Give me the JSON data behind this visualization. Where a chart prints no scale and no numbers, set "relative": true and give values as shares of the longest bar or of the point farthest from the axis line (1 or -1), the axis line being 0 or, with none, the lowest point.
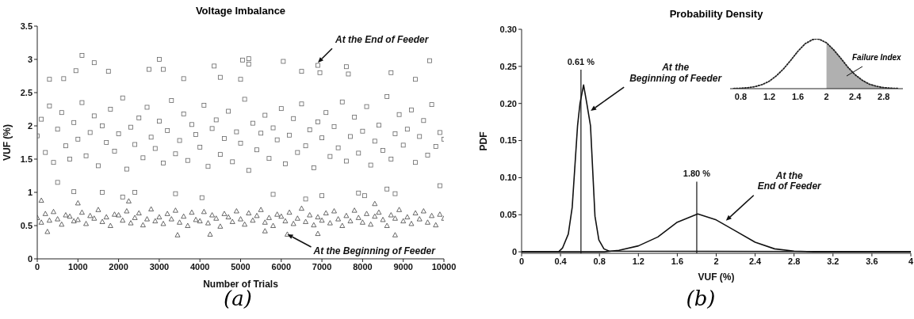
{
  "chart_data": [
    {
      "type": "scatter",
      "title": "Voltage Imbalance",
      "xlabel": "Number of Trials",
      "ylabel": "VUF (%)",
      "xlim": [
        0,
        10000
      ],
      "xticks": [
        0,
        1000,
        2000,
        3000,
        4000,
        5000,
        6000,
        7000,
        8000,
        9000,
        10000
      ],
      "ylim": [
        0,
        3.5
      ],
      "yticks": [
        0,
        0.5,
        1,
        1.5,
        2,
        2.5,
        3,
        3.5
      ],
      "series": [
        {
          "color": "#666666",
          "marker": "square",
          "x": [
            0,
            100,
            200,
            300,
            400,
            500,
            600,
            700,
            800,
            900,
            1000,
            1100,
            1200,
            1300,
            1400,
            1500,
            1600,
            1700,
            1800,
            1900,
            2000,
            2100,
            2200,
            2300,
            2400,
            2500,
            2600,
            2700,
            2800,
            2900,
            3000,
            3100,
            3200,
            3300,
            3400,
            3500,
            3600,
            3700,
            3800,
            3900,
            4000,
            4100,
            4200,
            4300,
            4400,
            4500,
            4600,
            4700,
            4800,
            4900,
            5000,
            5100,
            5200,
            5300,
            5400,
            5500,
            5600,
            5700,
            5800,
            5900,
            6000,
            6100,
            6200,
            6300,
            6400,
            6500,
            6600,
            6700,
            6800,
            6900,
            7000,
            7100,
            7200,
            7300,
            7400,
            7500,
            7600,
            7700,
            7800,
            7900,
            8000,
            8100,
            8200,
            8300,
            8400,
            8500,
            8600,
            8700,
            8800,
            8900,
            9000,
            9100,
            9200,
            9300,
            9400,
            9500,
            9600,
            9700,
            9800,
            9900,
            10000,
            1100,
            1400,
            3000,
            5050,
            5200,
            5200,
            6050,
            6900,
            7600,
            9650,
            950,
            3100,
            4350,
            6500,
            8700,
            1750,
            2750,
            300,
            650,
            3600,
            4500,
            5000,
            9300,
            6950,
            7650,
            900,
            1600,
            2400,
            3400,
            4050,
            5800,
            7000,
            8050,
            8800,
            2100,
            6600,
            7900,
            500,
            8600,
            9900
          ],
          "values": [
            1.85,
            2.1,
            1.6,
            2.3,
            1.45,
            1.95,
            2.2,
            1.7,
            1.5,
            2.05,
            1.8,
            2.35,
            1.55,
            1.9,
            2.15,
            1.4,
            2.0,
            1.75,
            2.25,
            1.62,
            1.88,
            2.42,
            1.35,
            1.98,
            1.72,
            2.12,
            1.52,
            2.28,
            1.83,
            1.66,
            2.07,
            1.44,
            1.93,
            2.38,
            1.58,
            1.78,
            2.18,
            1.48,
            2.02,
            1.87,
            1.68,
            2.31,
            1.39,
            1.96,
            2.09,
            1.57,
            1.81,
            2.22,
            1.46,
            1.91,
            1.74,
            2.4,
            1.33,
            2.04,
            1.64,
            1.89,
            2.16,
            1.51,
            1.97,
            1.79,
            2.26,
            1.43,
            1.86,
            2.11,
            1.6,
            2.33,
            1.7,
            1.94,
            1.37,
            2.06,
            1.82,
            2.2,
            1.54,
            1.99,
            1.67,
            2.36,
            1.47,
            1.84,
            2.13,
            1.59,
            1.92,
            2.29,
            1.41,
            1.77,
            2.01,
            1.63,
            2.44,
            1.5,
            1.88,
            2.17,
            1.71,
            1.95,
            2.24,
            1.45,
            1.84,
            2.08,
            1.56,
            2.32,
            1.69,
            1.9,
            1.8,
            3.06,
            2.95,
            3.0,
            2.99,
            3.01,
            2.93,
            2.97,
            2.91,
            2.89,
            2.98,
            2.83,
            2.85,
            2.9,
            2.82,
            2.8,
            2.82,
            2.85,
            2.7,
            2.71,
            2.71,
            2.73,
            2.7,
            2.7,
            2.8,
            2.78,
            1.01,
            1.0,
            1.0,
            0.98,
            0.92,
            0.97,
            0.95,
            0.95,
            0.98,
            0.93,
            0.9,
            0.99,
            1.15,
            1.05,
            1.1
          ]
        },
        {
          "color": "#444444",
          "marker": "triangle",
          "x": [
            0,
            100,
            200,
            300,
            400,
            500,
            600,
            700,
            800,
            900,
            1000,
            1100,
            1200,
            1300,
            1400,
            1500,
            1600,
            1700,
            1800,
            1900,
            2000,
            2100,
            2200,
            2300,
            2400,
            2500,
            2600,
            2700,
            2800,
            2900,
            3000,
            3100,
            3200,
            3300,
            3400,
            3500,
            3600,
            3700,
            3800,
            3900,
            4000,
            4100,
            4200,
            4300,
            4400,
            4500,
            4600,
            4700,
            4800,
            4900,
            5000,
            5100,
            5200,
            5300,
            5400,
            5500,
            5600,
            5700,
            5800,
            5900,
            6000,
            6100,
            6200,
            6300,
            6400,
            6500,
            6600,
            6700,
            6800,
            6900,
            7000,
            7100,
            7200,
            7300,
            7400,
            7500,
            7600,
            7700,
            7800,
            7900,
            8000,
            8100,
            8200,
            8300,
            8400,
            8500,
            8600,
            8700,
            8800,
            8900,
            9000,
            9100,
            9200,
            9300,
            9400,
            9500,
            9600,
            9700,
            9800,
            9900,
            10000,
            3450,
            4250,
            6150,
            8800,
            6900,
            100,
            2250,
            8300,
            250,
            1000,
            5600
          ],
          "values": [
            0.62,
            0.55,
            0.68,
            0.58,
            0.71,
            0.6,
            0.52,
            0.66,
            0.64,
            0.57,
            0.59,
            0.7,
            0.53,
            0.65,
            0.61,
            0.74,
            0.56,
            0.63,
            0.5,
            0.67,
            0.66,
            0.58,
            0.72,
            0.54,
            0.62,
            0.69,
            0.51,
            0.6,
            0.75,
            0.57,
            0.63,
            0.53,
            0.68,
            0.6,
            0.73,
            0.55,
            0.64,
            0.5,
            0.7,
            0.59,
            0.57,
            0.71,
            0.54,
            0.66,
            0.61,
            0.49,
            0.68,
            0.63,
            0.56,
            0.72,
            0.6,
            0.52,
            0.69,
            0.58,
            0.65,
            0.74,
            0.55,
            0.62,
            0.5,
            0.67,
            0.64,
            0.57,
            0.7,
            0.53,
            0.61,
            0.76,
            0.56,
            0.66,
            0.51,
            0.63,
            0.58,
            0.69,
            0.54,
            0.72,
            0.6,
            0.5,
            0.65,
            0.57,
            0.73,
            0.62,
            0.55,
            0.68,
            0.52,
            0.64,
            0.7,
            0.59,
            0.5,
            0.66,
            0.61,
            0.74,
            0.57,
            0.63,
            0.53,
            0.69,
            0.6,
            0.72,
            0.55,
            0.65,
            0.51,
            0.67,
            0.61,
            0.36,
            0.37,
            0.37,
            0.36,
            0.38,
            0.88,
            0.87,
            0.83,
            0.41,
            0.84,
            0.42
          ]
        }
      ],
      "annotations": [
        {
          "text": "At the End of Feeder",
          "x": 6900,
          "y": 2.95
        },
        {
          "text": "At the Beginning of Feeder",
          "x": 6150,
          "y": 0.37
        },
        "(a)"
      ]
    },
    {
      "type": "line",
      "title": "Probability Density",
      "xlabel": "VUF (%)",
      "ylabel": "PDF",
      "xlim": [
        0,
        4
      ],
      "xticks": [
        0,
        0.4,
        0.8,
        1.2,
        1.6,
        2,
        2.4,
        2.8,
        3.2,
        3.6,
        4
      ],
      "ylim": [
        -0.002,
        0.3
      ],
      "yticks": [
        0,
        0.05,
        {
          "value": 0.1,
          "label": "0.10"
        },
        0.15,
        {
          "value": 0.2,
          "label": "0.20"
        },
        0.25,
        {
          "value": 0.3,
          "label": "0.30"
        }
      ],
      "series": [
        {
          "color": "#111111",
          "line_style": "solid",
          "x": [
            0,
            0.38,
            0.42,
            0.48,
            0.52,
            0.575,
            0.6,
            0.637,
            0.67,
            0.708,
            0.754,
            0.794,
            0.846,
            0.9,
            4
          ],
          "values": [
            0,
            0,
            0.005,
            0.024,
            0.06,
            0.17,
            0.2,
            0.225,
            0.2,
            0.17,
            0.048,
            0.016,
            0.004,
            0.001,
            0
          ]
        },
        {
          "color": "#111111",
          "line_style": "solid",
          "x": [
            0,
            0.85,
            1.0,
            1.2,
            1.4,
            1.6,
            1.81,
            2.0,
            2.2,
            2.4,
            2.6,
            2.8,
            3.0,
            4
          ],
          "values": [
            0,
            0,
            0.002,
            0.008,
            0.02,
            0.04,
            0.051,
            0.043,
            0.028,
            0.013,
            0.004,
            0.001,
            0,
            0
          ]
        }
      ],
      "ref_lines": [
        {
          "axis": "x",
          "value": 0.61,
          "label": "0.61 %",
          "color": "#111111"
        },
        {
          "axis": "x",
          "value": 1.8,
          "label": "1.80 %",
          "color": "#111111"
        }
      ],
      "annotations": [
        {
          "text": "At the\nBeginning of Feeder",
          "x": 0.71,
          "y": 0.19
        },
        {
          "text": "At the\nEnd of Feeder",
          "x": 2.1,
          "y": 0.042
        },
        "(b)"
      ]
    },
    {
      "type": "line",
      "relative": true,
      "xlim": [
        0.65,
        3.07
      ],
      "xticks": [
        0.8,
        1.2,
        1.6,
        2,
        2.4,
        2.8
      ],
      "marker": "none",
      "series": [
        {
          "type": "area",
          "color": "#b0b0b0",
          "x": [
            2.0,
            2.1,
            2.2,
            2.3,
            2.4,
            2.5,
            2.6,
            2.7,
            2.8,
            2.9,
            3.0
          ],
          "values": [
            0.92,
            0.78,
            0.61,
            0.43,
            0.28,
            0.17,
            0.09,
            0.047,
            0.022,
            0.009,
            0.004
          ]
        },
        {
          "color": "#222222",
          "line_style": "dotted",
          "x": [
            0.7,
            0.8,
            0.9,
            1.0,
            1.1,
            1.2,
            1.3,
            1.4,
            1.5,
            1.6,
            1.7,
            1.8,
            1.86,
            1.9,
            2.0,
            2.1,
            2.2,
            2.3,
            2.4,
            2.5,
            2.6,
            2.7,
            2.8,
            2.9,
            3.0
          ],
          "values": [
            0.003,
            0.008,
            0.019,
            0.041,
            0.082,
            0.15,
            0.26,
            0.4,
            0.57,
            0.75,
            0.9,
            0.98,
            1,
            0.99,
            0.92,
            0.78,
            0.61,
            0.43,
            0.28,
            0.17,
            0.09,
            0.047,
            0.022,
            0.009,
            0.004
          ]
        }
      ],
      "annotations": [
        "Failure Index"
      ]
    }
  ]
}
